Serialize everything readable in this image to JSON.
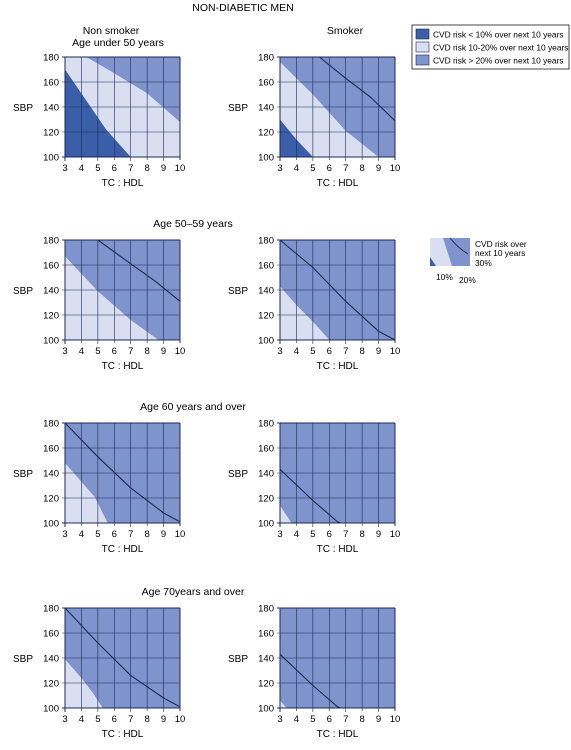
{
  "title": "NON-DIABETIC MEN",
  "column_labels": [
    "Non smoker",
    "Smoker"
  ],
  "legend": {
    "items": [
      {
        "label": "CVD risk < 10% over next 10 years",
        "color": "#3a5fa8"
      },
      {
        "label": "CVD risk 10-20% over next 10 years",
        "color": "#d9def1"
      },
      {
        "label": "CVD risk > 20% over next 10 years",
        "color": "#7f93cc"
      }
    ]
  },
  "key": {
    "text_lines": [
      "CVD risk over",
      "next 10 years"
    ],
    "labels": [
      "30%",
      "10%",
      "20%"
    ]
  },
  "colors": {
    "low": "#3a5fa8",
    "mid": "#d9def1",
    "high": "#7f93cc",
    "grid": "#1c2a55",
    "curve30": "#1c2a55"
  },
  "chart_data": [
    {
      "type": "heatmap",
      "age_group": "Age under 50 years",
      "smoker": false,
      "xlabel": "TC : HDL",
      "ylabel": "SBP",
      "x_ticks": [
        3,
        4,
        5,
        6,
        7,
        8,
        9,
        10
      ],
      "y_ticks": [
        100,
        120,
        140,
        160,
        180
      ],
      "xlim": [
        3,
        10
      ],
      "ylim": [
        100,
        180
      ],
      "boundary_10": [
        [
          3,
          170
        ],
        [
          5.5,
          122
        ],
        [
          7,
          100
        ]
      ],
      "boundary_20": [
        [
          4.3,
          180
        ],
        [
          6,
          167
        ],
        [
          8,
          151
        ],
        [
          10,
          128
        ]
      ],
      "curve_30": null
    },
    {
      "type": "heatmap",
      "age_group": "Age under 50 years",
      "smoker": true,
      "xlabel": "TC : HDL",
      "ylabel": "SBP",
      "x_ticks": [
        3,
        4,
        5,
        6,
        7,
        8,
        9,
        10
      ],
      "y_ticks": [
        100,
        120,
        140,
        160,
        180
      ],
      "xlim": [
        3,
        10
      ],
      "ylim": [
        100,
        180
      ],
      "boundary_10": [
        [
          3,
          130
        ],
        [
          4,
          114
        ],
        [
          5,
          100
        ]
      ],
      "boundary_20": [
        [
          3,
          176
        ],
        [
          5,
          150
        ],
        [
          7,
          121
        ],
        [
          9,
          100
        ]
      ],
      "curve_30": [
        [
          5.4,
          180
        ],
        [
          7,
          163
        ],
        [
          8.5,
          148
        ],
        [
          10,
          129
        ]
      ]
    },
    {
      "type": "heatmap",
      "age_group": "Age 50–59 years",
      "smoker": false,
      "xlabel": "TC : HDL",
      "ylabel": "SBP",
      "x_ticks": [
        3,
        4,
        5,
        6,
        7,
        8,
        9,
        10
      ],
      "y_ticks": [
        100,
        120,
        140,
        160,
        180
      ],
      "xlim": [
        3,
        10
      ],
      "ylim": [
        100,
        180
      ],
      "boundary_10": null,
      "boundary_20": [
        [
          3,
          167
        ],
        [
          5,
          139
        ],
        [
          7,
          116
        ],
        [
          8.7,
          100
        ]
      ],
      "curve_30": [
        [
          5,
          180
        ],
        [
          7,
          161
        ],
        [
          8.5,
          147
        ],
        [
          10,
          131
        ]
      ]
    },
    {
      "type": "heatmap",
      "age_group": "Age 50–59 years",
      "smoker": true,
      "xlabel": "TC : HDL",
      "ylabel": "SBP",
      "x_ticks": [
        3,
        4,
        5,
        6,
        7,
        8,
        9,
        10
      ],
      "y_ticks": [
        100,
        120,
        140,
        160,
        180
      ],
      "xlim": [
        3,
        10
      ],
      "ylim": [
        100,
        180
      ],
      "boundary_10": null,
      "boundary_20": [
        [
          3,
          143
        ],
        [
          4,
          128
        ],
        [
          5.2,
          112
        ],
        [
          6,
          100
        ]
      ],
      "curve_30": [
        [
          3,
          180
        ],
        [
          5,
          158
        ],
        [
          7,
          131
        ],
        [
          9,
          107
        ],
        [
          10,
          100
        ]
      ]
    },
    {
      "type": "heatmap",
      "age_group": "Age 60 years and over",
      "smoker": false,
      "xlabel": "TC : HDL",
      "ylabel": "SBP",
      "x_ticks": [
        3,
        4,
        5,
        6,
        7,
        8,
        9,
        10
      ],
      "y_ticks": [
        100,
        120,
        140,
        160,
        180
      ],
      "xlim": [
        3,
        10
      ],
      "ylim": [
        100,
        180
      ],
      "boundary_10": null,
      "boundary_20": [
        [
          3,
          148
        ],
        [
          4,
          133
        ],
        [
          4.8,
          121
        ],
        [
          5.6,
          100
        ]
      ],
      "curve_30": [
        [
          3,
          180
        ],
        [
          5,
          153
        ],
        [
          7,
          128
        ],
        [
          9,
          108
        ],
        [
          10,
          101
        ]
      ]
    },
    {
      "type": "heatmap",
      "age_group": "Age 60 years and over",
      "smoker": true,
      "xlabel": "TC : HDL",
      "ylabel": "SBP",
      "x_ticks": [
        3,
        4,
        5,
        6,
        7,
        8,
        9,
        10
      ],
      "y_ticks": [
        100,
        120,
        140,
        160,
        180
      ],
      "xlim": [
        3,
        10
      ],
      "ylim": [
        100,
        180
      ],
      "boundary_10": null,
      "boundary_20": [
        [
          3,
          114
        ],
        [
          3.7,
          100
        ]
      ],
      "curve_30": [
        [
          3,
          143
        ],
        [
          5,
          118
        ],
        [
          6.5,
          101
        ],
        [
          6.7,
          100
        ]
      ]
    },
    {
      "type": "heatmap",
      "age_group": "Age 70years and over",
      "smoker": false,
      "xlabel": "TC : HDL",
      "ylabel": "SBP",
      "x_ticks": [
        3,
        4,
        5,
        6,
        7,
        8,
        9,
        10
      ],
      "y_ticks": [
        100,
        120,
        140,
        160,
        180
      ],
      "xlim": [
        3,
        10
      ],
      "ylim": [
        100,
        180
      ],
      "boundary_10": null,
      "boundary_20": [
        [
          3,
          139
        ],
        [
          4,
          124
        ],
        [
          4.7,
          112
        ],
        [
          5.3,
          100
        ]
      ],
      "curve_30": [
        [
          3,
          180
        ],
        [
          5,
          152
        ],
        [
          7,
          126
        ],
        [
          9,
          108
        ],
        [
          10,
          101
        ]
      ]
    },
    {
      "type": "heatmap",
      "age_group": "Age 70years and over",
      "smoker": true,
      "xlabel": "TC : HDL",
      "ylabel": "SBP",
      "x_ticks": [
        3,
        4,
        5,
        6,
        7,
        8,
        9,
        10
      ],
      "y_ticks": [
        100,
        120,
        140,
        160,
        180
      ],
      "xlim": [
        3,
        10
      ],
      "ylim": [
        100,
        180
      ],
      "boundary_10": null,
      "boundary_20": [
        [
          3,
          106
        ],
        [
          3.4,
          100
        ]
      ],
      "curve_30": [
        [
          3,
          143
        ],
        [
          5,
          118
        ],
        [
          6.5,
          101
        ],
        [
          6.7,
          100
        ]
      ]
    }
  ]
}
